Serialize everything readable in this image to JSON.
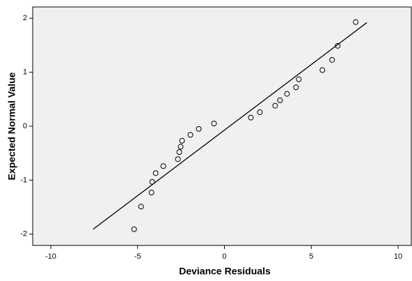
{
  "chart_data": {
    "type": "scatter",
    "x_label": "Deviance Residuals",
    "y_label": "Expected Normal Value",
    "x": [
      7.56,
      6.52,
      6.2,
      5.64,
      4.28,
      4.12,
      3.6,
      3.2,
      2.92,
      2.04,
      1.52,
      -0.6,
      -1.48,
      -1.96,
      -2.44,
      -2.52,
      -2.6,
      -2.68,
      -3.52,
      -3.96,
      -4.16,
      -4.2,
      -4.8,
      -5.2
    ],
    "values": [
      1.93,
      1.49,
      1.23,
      1.04,
      0.87,
      0.72,
      0.6,
      0.48,
      0.38,
      0.26,
      0.16,
      0.05,
      -0.05,
      -0.16,
      -0.27,
      -0.38,
      -0.48,
      -0.61,
      -0.74,
      -0.87,
      -1.03,
      -1.23,
      -1.49,
      -1.91
    ],
    "reference_line": {
      "x": [
        -7.56,
        8.2
      ],
      "y": [
        -1.91,
        1.92
      ]
    },
    "xlim": [
      -11.04,
      10.76
    ],
    "ylim": [
      -2.21,
      2.21
    ],
    "xticks": [
      -10,
      -5,
      0,
      5,
      10
    ],
    "yticks": [
      -2,
      -1,
      0,
      1,
      2
    ],
    "marker_color": "#000000",
    "line_color": "#000000",
    "background": "#f0f0f0"
  }
}
